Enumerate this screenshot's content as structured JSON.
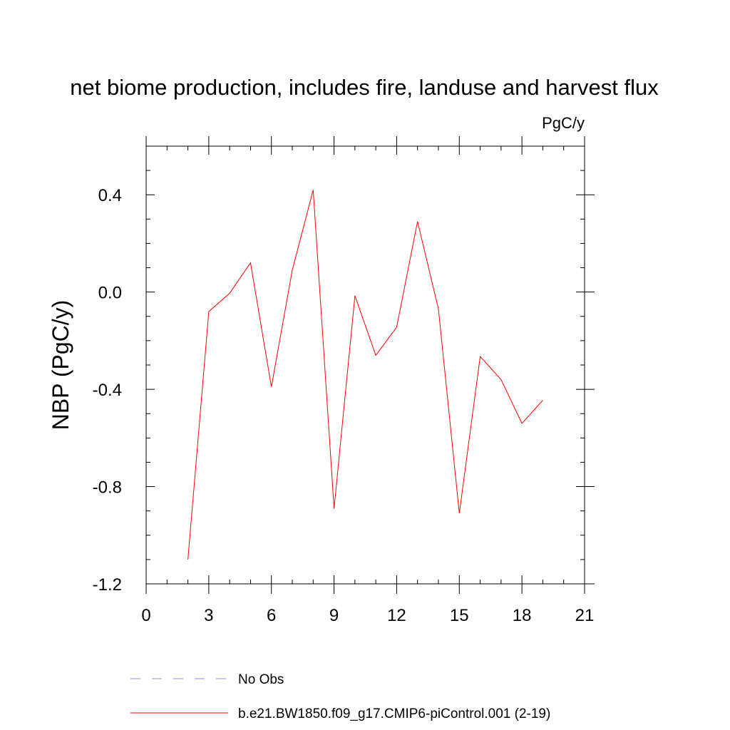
{
  "chart_data": {
    "type": "line",
    "title": "net biome production, includes fire, landuse and harvest flux",
    "units": "PgC/y",
    "ylabel": "NBP  (PgC/y)",
    "xlabel": "",
    "xlim": [
      0,
      21
    ],
    "ylim": [
      -1.2,
      0.6
    ],
    "x_ticks": [
      0,
      3,
      6,
      9,
      12,
      15,
      18,
      21
    ],
    "x_tick_labels": [
      "0",
      "3",
      "6",
      "9",
      "12",
      "15",
      "18",
      "21"
    ],
    "y_ticks": [
      -1.2,
      -0.8,
      -0.4,
      0.0,
      0.4
    ],
    "y_tick_labels": [
      "-1.2",
      "-0.8",
      "-0.4",
      "0.0",
      "0.4"
    ],
    "grid": false,
    "legend_placement": "bottom",
    "series": [
      {
        "name": "b.e21.BW1850.f09_g17.CMIP6-piControl.001 (2-19)",
        "color": "#ff0000",
        "style": "solid",
        "x": [
          2,
          3,
          4,
          5,
          6,
          7,
          8,
          9,
          10,
          11,
          12,
          13,
          14,
          15,
          16,
          17,
          18,
          19
        ],
        "y": [
          -1.1,
          -0.08,
          -0.005,
          0.12,
          -0.39,
          0.09,
          0.42,
          -0.89,
          -0.015,
          -0.26,
          -0.145,
          0.29,
          -0.07,
          -0.91,
          -0.265,
          -0.36,
          -0.54,
          -0.445
        ]
      }
    ],
    "legend": [
      {
        "label": "No Obs",
        "color": "#8888dd",
        "style": "dashed"
      },
      {
        "label": "b.e21.BW1850.f09_g17.CMIP6-piControl.001 (2-19)",
        "color": "#ff0000",
        "style": "solid"
      }
    ]
  }
}
